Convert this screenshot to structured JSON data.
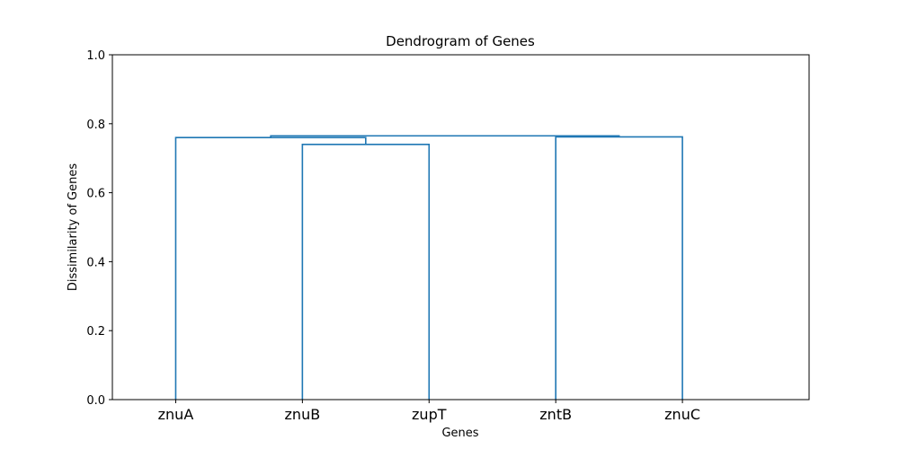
{
  "chart_data": {
    "type": "dendrogram",
    "title": "Dendrogram of Genes",
    "xlabel": "Genes",
    "ylabel": "Dissimilarity of Genes",
    "ylim": [
      0,
      1.0
    ],
    "yticks": [
      "0.0",
      "0.2",
      "0.4",
      "0.6",
      "0.8",
      "1.0"
    ],
    "leaves": [
      "znuA",
      "znuB",
      "zupT",
      "zntB",
      "znuC"
    ],
    "link_color": "#1f77b4",
    "grid": false,
    "links": [
      {
        "left": "znuB",
        "right": "zupT",
        "height": 0.74
      },
      {
        "left": "znuA",
        "right": "(znuB, zupT)",
        "height": 0.76
      },
      {
        "left": "zntB",
        "right": "znuC",
        "height": 0.762
      },
      {
        "left": "(znuA, znuB, zupT)",
        "right": "(zntB, znuC)",
        "height": 0.765
      }
    ]
  }
}
